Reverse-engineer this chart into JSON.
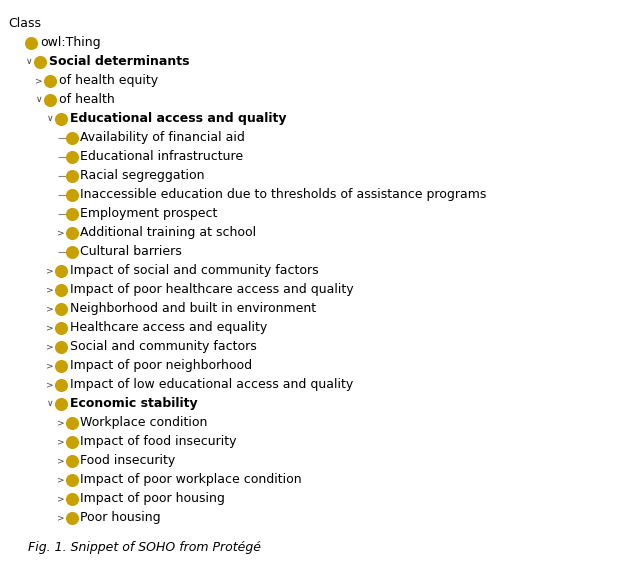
{
  "caption": "Fig. 1. Snippet of SOHO from Protégé",
  "background_color": "#ffffff",
  "text_color": "#000000",
  "circle_color": "#C8A000",
  "font_size": 9.0,
  "caption_font_size": 9.0,
  "nodes": [
    {
      "label": "Class",
      "has_circle": false,
      "arrow": "none",
      "indent": 0.0,
      "bold": false
    },
    {
      "label": "owl:Thing",
      "has_circle": true,
      "arrow": "none",
      "indent": 0.5,
      "bold": false
    },
    {
      "label": "Social determinants",
      "has_circle": true,
      "arrow": "down",
      "indent": 1.0,
      "bold": true
    },
    {
      "label": "of health equity",
      "has_circle": true,
      "arrow": "right",
      "indent": 1.55,
      "bold": false
    },
    {
      "label": "of health",
      "has_circle": true,
      "arrow": "down",
      "indent": 1.55,
      "bold": false
    },
    {
      "label": "Educational access and quality",
      "has_circle": true,
      "arrow": "down",
      "indent": 2.15,
      "bold": true
    },
    {
      "label": "Availability of financial aid",
      "has_circle": true,
      "arrow": "dash",
      "indent": 2.75,
      "bold": false
    },
    {
      "label": "Educational infrastructure",
      "has_circle": true,
      "arrow": "dash",
      "indent": 2.75,
      "bold": false
    },
    {
      "label": "Racial segreggation",
      "has_circle": true,
      "arrow": "dash",
      "indent": 2.75,
      "bold": false
    },
    {
      "label": "Inaccessible education due to thresholds of assistance programs",
      "has_circle": true,
      "arrow": "dash",
      "indent": 2.75,
      "bold": false
    },
    {
      "label": "Employment prospect",
      "has_circle": true,
      "arrow": "dash",
      "indent": 2.75,
      "bold": false
    },
    {
      "label": "Additional training at school",
      "has_circle": true,
      "arrow": "right",
      "indent": 2.75,
      "bold": false
    },
    {
      "label": "Cultural barriers",
      "has_circle": true,
      "arrow": "dash",
      "indent": 2.75,
      "bold": false
    },
    {
      "label": "Impact of social and community factors",
      "has_circle": true,
      "arrow": "right",
      "indent": 2.15,
      "bold": false
    },
    {
      "label": "Impact of poor healthcare access and quality",
      "has_circle": true,
      "arrow": "right",
      "indent": 2.15,
      "bold": false
    },
    {
      "label": "Neighborhood and built in environment",
      "has_circle": true,
      "arrow": "right",
      "indent": 2.15,
      "bold": false
    },
    {
      "label": "Healthcare access and equality",
      "has_circle": true,
      "arrow": "right",
      "indent": 2.15,
      "bold": false
    },
    {
      "label": "Social and community factors",
      "has_circle": true,
      "arrow": "right",
      "indent": 2.15,
      "bold": false
    },
    {
      "label": "Impact of poor neighborhood",
      "has_circle": true,
      "arrow": "right",
      "indent": 2.15,
      "bold": false
    },
    {
      "label": "Impact of low educational access and quality",
      "has_circle": true,
      "arrow": "right",
      "indent": 2.15,
      "bold": false
    },
    {
      "label": "Economic stability",
      "has_circle": true,
      "arrow": "down",
      "indent": 2.15,
      "bold": true
    },
    {
      "label": "Workplace condition",
      "has_circle": true,
      "arrow": "right",
      "indent": 2.75,
      "bold": false
    },
    {
      "label": "Impact of food insecurity",
      "has_circle": true,
      "arrow": "right",
      "indent": 2.75,
      "bold": false
    },
    {
      "label": "Food insecurity",
      "has_circle": true,
      "arrow": "right",
      "indent": 2.75,
      "bold": false
    },
    {
      "label": "Impact of poor workplace condition",
      "has_circle": true,
      "arrow": "right",
      "indent": 2.75,
      "bold": false
    },
    {
      "label": "Impact of poor housing",
      "has_circle": true,
      "arrow": "right",
      "indent": 2.75,
      "bold": false
    },
    {
      "label": "Poor housing",
      "has_circle": true,
      "arrow": "right",
      "indent": 2.75,
      "bold": false
    }
  ]
}
